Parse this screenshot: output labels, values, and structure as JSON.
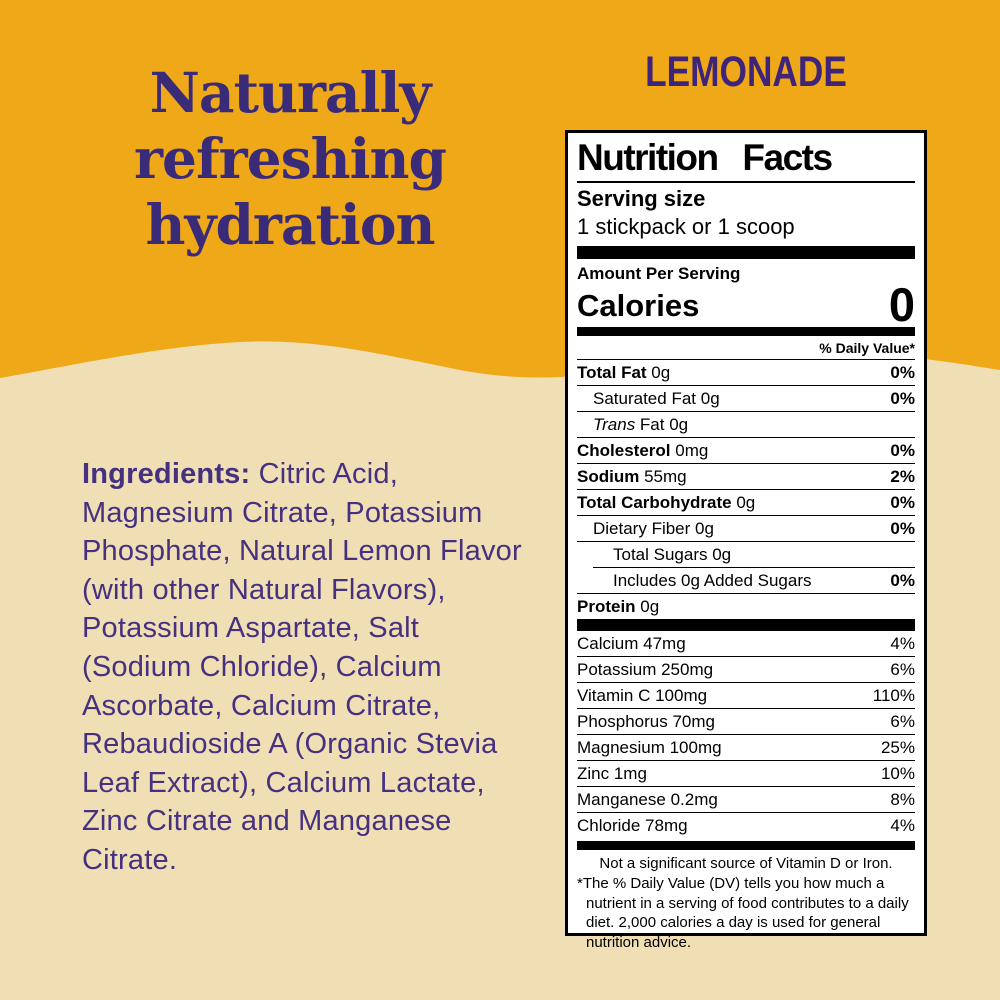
{
  "page": {
    "bg_top_color": "#EFA818",
    "bg_bottom_color": "#F0DEB4"
  },
  "hero": {
    "headline_lines": [
      "Naturally",
      "refreshing",
      "hydration"
    ],
    "headline_color": "#3A2B79"
  },
  "flavor": {
    "name": "LEMONADE",
    "color": "#3F2579"
  },
  "ingredients": {
    "label": "Ingredients:",
    "text": " Citric Acid, Magnesium Citrate, Potassium Phosphate, Natural Lemon Flavor (with other Natural Flavors), Potassium Aspartate, Salt (Sodium Chloride), Calcium Ascorbate, Calcium Citrate, Rebaudioside A (Organic Stevia Leaf Extract), Calcium Lactate, Zinc Citrate and Manganese Citrate.",
    "color": "#45317F"
  },
  "nutrition_label": {
    "title": "Nutrition Facts",
    "serving_size_label": "Serving size",
    "serving_size_value": "1 stickpack or 1 scoop",
    "amount_per_serving": "Amount Per Serving",
    "calories_label": "Calories",
    "calories_value": "0",
    "daily_value_header": "% Daily Value*",
    "rows": [
      {
        "label": "Total Fat",
        "amount": "0g",
        "dv": "0%",
        "bold": true,
        "italic": false,
        "indent": 0,
        "rule_shift": false
      },
      {
        "label": "Saturated Fat",
        "amount": "0g",
        "dv": "0%",
        "bold": false,
        "italic": false,
        "indent": 1,
        "rule_shift": false
      },
      {
        "label": "Trans",
        "amount": "Fat 0g",
        "dv": "",
        "bold": false,
        "italic": true,
        "indent": 1,
        "rule_shift": false
      },
      {
        "label": "Cholesterol",
        "amount": "0mg",
        "dv": "0%",
        "bold": true,
        "italic": false,
        "indent": 0,
        "rule_shift": false
      },
      {
        "label": "Sodium",
        "amount": "55mg",
        "dv": "2%",
        "bold": true,
        "italic": false,
        "indent": 0,
        "rule_shift": false
      },
      {
        "label": "Total Carbohydrate",
        "amount": "0g",
        "dv": "0%",
        "bold": true,
        "italic": false,
        "indent": 0,
        "rule_shift": false
      },
      {
        "label": "Dietary Fiber",
        "amount": "0g",
        "dv": "0%",
        "bold": false,
        "italic": false,
        "indent": 1,
        "rule_shift": false
      },
      {
        "label": "Total Sugars",
        "amount": "0g",
        "dv": "",
        "bold": false,
        "italic": false,
        "indent": 1,
        "rule_shift": true
      },
      {
        "label": "Includes 0g Added Sugars",
        "amount": "",
        "dv": "0%",
        "bold": false,
        "italic": false,
        "indent": 2,
        "rule_shift": false
      },
      {
        "label": "Protein",
        "amount": "0g",
        "dv": "",
        "bold": true,
        "italic": false,
        "indent": 0,
        "rule_shift": false
      }
    ],
    "minerals": [
      {
        "label": "Calcium 47mg",
        "dv": "4%"
      },
      {
        "label": "Potassium 250mg",
        "dv": "6%"
      },
      {
        "label": "Vitamin C 100mg",
        "dv": "110%"
      },
      {
        "label": "Phosphorus 70mg",
        "dv": "6%"
      },
      {
        "label": "Magnesium 100mg",
        "dv": "25%"
      },
      {
        "label": "Zinc 1mg",
        "dv": "10%"
      },
      {
        "label": "Manganese 0.2mg",
        "dv": "8%"
      },
      {
        "label": "Chloride 78mg",
        "dv": "4%"
      }
    ],
    "not_significant": "Not a significant source of Vitamin D or Iron.",
    "footnote_marker": "*",
    "footnote": "The % Daily Value (DV) tells you how much a nutrient in a serving of food contributes to a daily diet. 2,000 calories a day is used for general nutrition advice."
  }
}
